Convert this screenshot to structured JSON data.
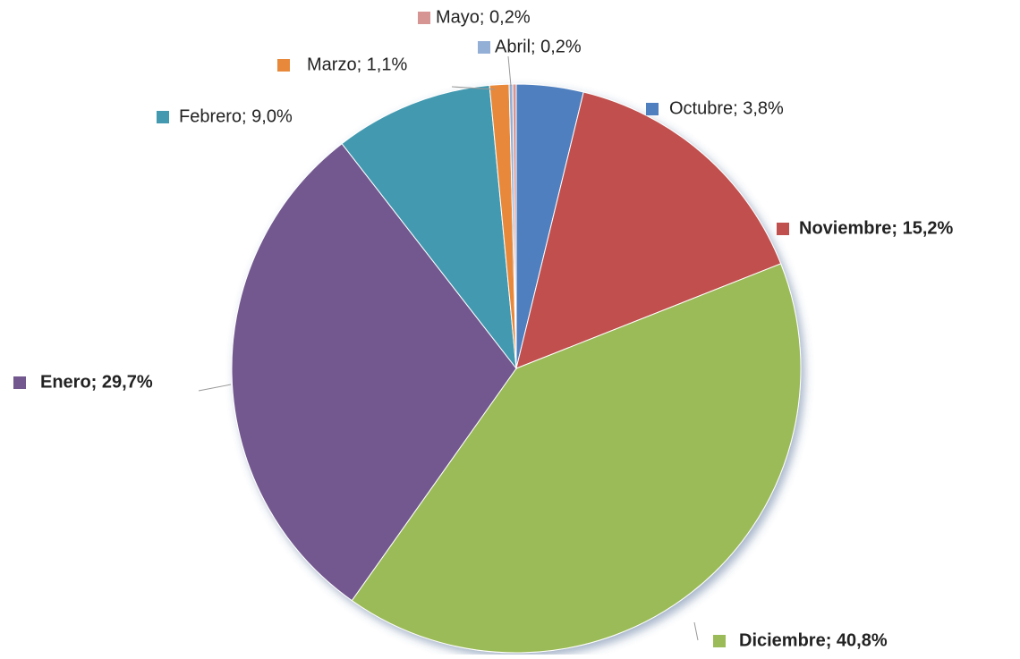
{
  "chart_data": {
    "type": "pie",
    "values": [
      3.8,
      15.2,
      40.8,
      29.7,
      9.0,
      1.1,
      0.2,
      0.2
    ],
    "value_labels": [
      "Octubre; 3,8%",
      "Noviembre; 15,2%",
      "Diciembre; 40,8%",
      "Enero; 29,7%",
      "Febrero; 9,0%",
      "Marzo; 1,1%",
      "Abril; 0,2%",
      "Mayo; 0,2%"
    ],
    "colors": [
      "#4f7fbf",
      "#c0504d",
      "#9bbb59",
      "#72588f",
      "#4299b0",
      "#e8883a",
      "#94afd6",
      "#d69492"
    ]
  }
}
